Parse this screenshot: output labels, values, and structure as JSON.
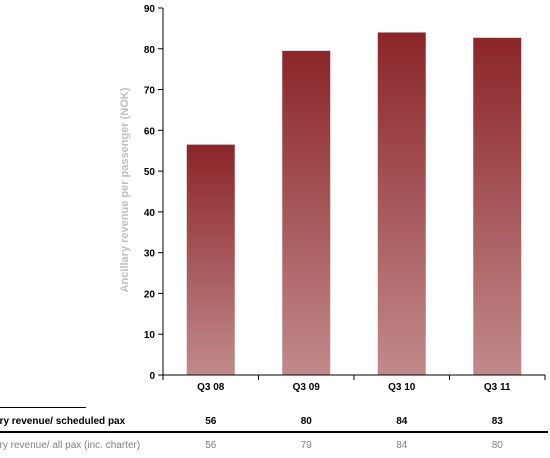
{
  "chart_data": {
    "type": "bar",
    "categories": [
      "Q3 08",
      "Q3 09",
      "Q3 10",
      "Q3 11"
    ],
    "values": [
      56.5,
      79.5,
      84,
      82.7
    ],
    "ylabel": "Ancillary revenue per passenger (NOK)",
    "ylim": [
      0,
      90
    ],
    "yticks": [
      0,
      10,
      20,
      30,
      40,
      50,
      60,
      70,
      80,
      90
    ],
    "grid": false,
    "bar_gradient": [
      "#8b2529",
      "#c18a8b"
    ]
  },
  "table": {
    "rows": [
      {
        "label": "ary revenue/ scheduled pax",
        "values": [
          "56",
          "80",
          "84",
          "83"
        ]
      },
      {
        "label": "ary revenue/ all pax (inc. charter)",
        "values": [
          "56",
          "79",
          "84",
          "80"
        ]
      }
    ]
  }
}
